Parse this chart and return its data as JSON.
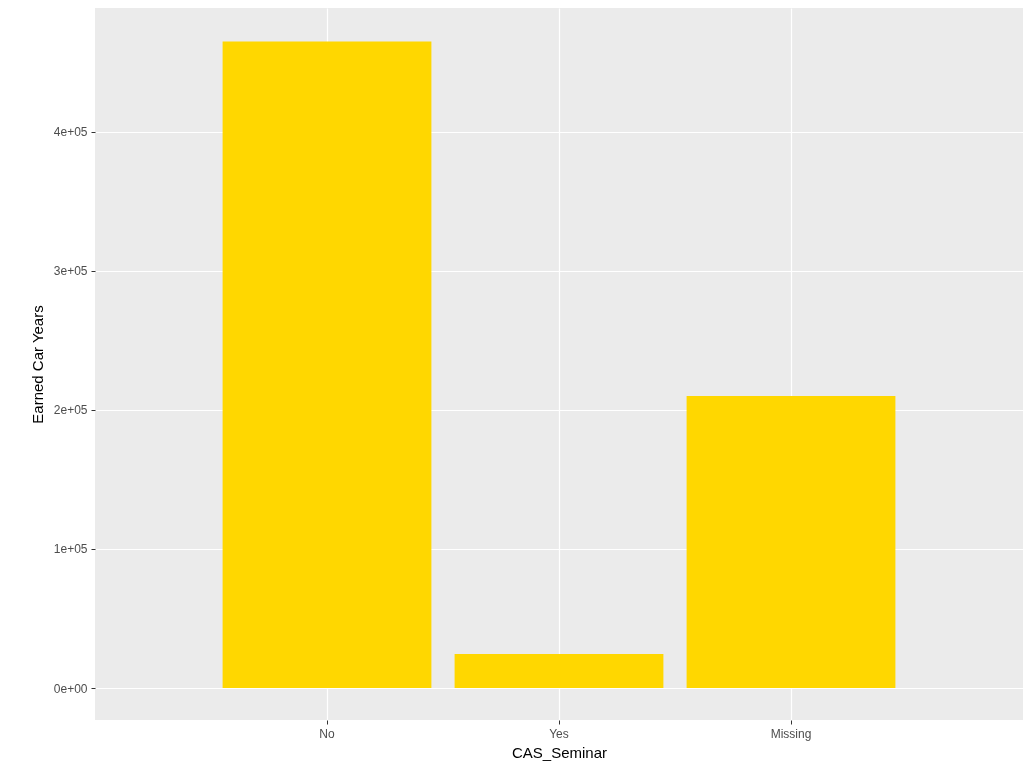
{
  "chart_data": {
    "type": "bar",
    "xlabel": "CAS_Seminar",
    "ylabel": "Earned Car Years",
    "categories": [
      "No",
      "Yes",
      "Missing"
    ],
    "values": [
      465000,
      24500,
      210000
    ],
    "color": "#ffd700",
    "ylim": [
      -23000,
      489000
    ],
    "yticks": [
      {
        "value": 0,
        "label": "0e+00"
      },
      {
        "value": 100000,
        "label": "1e+05"
      },
      {
        "value": 200000,
        "label": "2e+05"
      },
      {
        "value": 300000,
        "label": "3e+05"
      },
      {
        "value": 400000,
        "label": "4e+05"
      }
    ],
    "grid": true
  }
}
